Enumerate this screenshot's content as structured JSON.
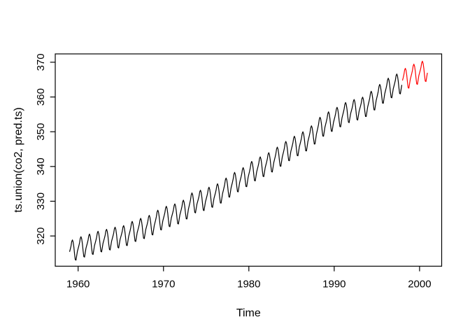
{
  "figure": {
    "background": "#ffffff",
    "foreground": "#000000"
  },
  "chart_data": {
    "type": "line",
    "title": "",
    "xlabel": "Time",
    "ylabel": "ts.union(co2, pred.ts)",
    "xlim": [
      1957.32,
      2002.59
    ],
    "ylim": [
      311.3,
      372.4
    ],
    "x_ticks": [
      1960,
      1970,
      1980,
      1990,
      2000
    ],
    "y_ticks": [
      320,
      330,
      340,
      350,
      360,
      370
    ],
    "grid": false,
    "legend_position": "none",
    "frequency": "monthly",
    "seasonal_deviation": [
      -0.1,
      0.6,
      1.4,
      2.6,
      3.0,
      2.3,
      0.8,
      -1.3,
      -3.0,
      -3.2,
      -2.0,
      -0.8
    ],
    "series": [
      {
        "name": "co2",
        "color": "#000000",
        "start_year": 1959,
        "end_year": 1997,
        "annual_means": [
          315.98,
          316.91,
          317.65,
          318.45,
          318.99,
          319.62,
          320.04,
          321.37,
          322.18,
          323.05,
          324.62,
          325.68,
          326.32,
          327.46,
          329.68,
          330.25,
          331.15,
          332.15,
          333.9,
          335.5,
          336.85,
          338.69,
          339.93,
          341.13,
          342.78,
          344.42,
          345.9,
          347.15,
          348.93,
          351.48,
          352.91,
          354.19,
          355.59,
          356.37,
          357.04,
          358.88,
          360.88,
          362.64,
          363.76
        ]
      },
      {
        "name": "pred.ts",
        "color": "#ff0000",
        "start_year": 1998,
        "end_year": 2000,
        "annual_means": [
          365.4,
          366.6,
          367.4
        ]
      }
    ]
  }
}
